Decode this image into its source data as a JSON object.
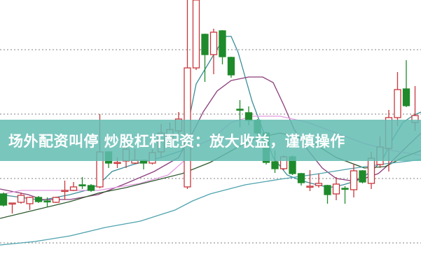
{
  "banner": {
    "title": "场外配资叫停 炒股杠杆配资：放大收益，谨慎操作"
  },
  "chart_data": {
    "type": "candlestick",
    "title": "",
    "xlabel": "",
    "ylabel": "",
    "axes_shown": false,
    "grid": "horizontal dotted",
    "gridlines": [
      329,
      237,
      145,
      53
    ],
    "ylim": [
      0,
      400
    ],
    "colors": {
      "up": "#c8373c",
      "down": "#1f8a2b",
      "grid": "#9a9a9a"
    },
    "candles": [
      [
        123,
        107,
        125,
        105
      ],
      [
        109,
        110,
        110,
        95
      ],
      [
        111,
        121,
        125,
        109
      ],
      [
        109,
        118,
        119,
        100
      ],
      [
        118,
        112,
        120,
        110
      ],
      [
        113,
        112,
        118,
        105
      ],
      [
        111,
        118,
        119,
        110
      ],
      [
        127,
        128,
        142,
        115
      ],
      [
        128,
        133,
        140,
        127
      ],
      [
        136,
        135,
        147,
        130
      ],
      [
        135,
        128,
        137,
        126
      ],
      [
        133,
        183,
        237,
        131
      ],
      [
        183,
        167,
        184,
        160
      ],
      [
        167,
        168,
        175,
        160
      ],
      [
        170,
        187,
        195,
        160
      ],
      [
        167,
        171,
        187,
        166
      ],
      [
        171,
        167,
        172,
        158
      ],
      [
        167,
        182,
        187,
        165
      ],
      [
        183,
        210,
        223,
        175
      ],
      [
        200,
        215,
        225,
        195
      ],
      [
        213,
        230,
        240,
        208
      ],
      [
        133,
        303,
        400,
        130
      ],
      [
        303,
        400,
        400,
        300
      ],
      [
        351,
        322,
        352,
        283
      ],
      [
        322,
        354,
        359,
        294
      ],
      [
        356,
        319,
        357,
        308
      ],
      [
        318,
        293,
        319,
        289
      ],
      [
        244,
        243,
        257,
        218
      ],
      [
        239,
        228,
        248,
        221
      ],
      [
        228,
        210,
        230,
        200
      ],
      [
        210,
        168,
        212,
        165
      ],
      [
        169,
        159,
        185,
        153
      ],
      [
        159,
        176,
        178,
        157
      ],
      [
        176,
        152,
        178,
        150
      ],
      [
        152,
        139,
        153,
        135
      ],
      [
        133,
        134,
        157,
        127
      ],
      [
        135,
        138,
        152,
        132
      ],
      [
        135,
        122,
        136,
        109
      ],
      [
        123,
        137,
        147,
        114
      ],
      [
        131,
        130,
        134,
        109
      ],
      [
        129,
        156,
        166,
        118
      ],
      [
        156,
        140,
        157,
        138
      ],
      [
        138,
        174,
        183,
        130
      ],
      [
        165,
        190,
        205,
        160
      ],
      [
        188,
        232,
        243,
        155
      ],
      [
        232,
        272,
        297,
        220
      ],
      [
        273,
        249,
        314,
        247
      ],
      [
        225,
        235,
        277,
        213
      ]
    ],
    "candle_fields": [
      "open",
      "close",
      "high",
      "low"
    ],
    "moving_averages": [
      {
        "color": "#3b8e98",
        "points": [
          [
            0.6,
            122
          ],
          [
            5.4,
            114
          ],
          [
            8.6,
            122
          ],
          [
            11,
            130
          ],
          [
            12,
            138
          ],
          [
            13.4,
            155
          ],
          [
            15.8,
            165
          ],
          [
            19,
            175
          ],
          [
            21.4,
            185
          ],
          [
            22.2,
            230
          ],
          [
            23,
            280
          ],
          [
            24.2,
            305
          ],
          [
            25.4,
            330
          ],
          [
            26.4,
            348
          ],
          [
            27,
            348
          ],
          [
            27.8,
            325
          ],
          [
            28.6,
            290
          ],
          [
            29.4,
            255
          ],
          [
            30.6,
            215
          ],
          [
            31.8,
            175
          ],
          [
            33.4,
            150
          ],
          [
            35,
            142
          ],
          [
            36.2,
            138
          ],
          [
            38.2,
            132
          ],
          [
            39.8,
            136
          ],
          [
            41.4,
            142
          ],
          [
            43,
            155
          ],
          [
            44.2,
            170
          ],
          [
            45.4,
            200
          ],
          [
            46.6,
            225
          ],
          [
            47.8,
            235
          ],
          [
            48.7,
            240
          ]
        ]
      },
      {
        "color": "#8b3d7c",
        "points": [
          [
            0.6,
            130
          ],
          [
            3.8,
            122
          ],
          [
            5.4,
            115
          ],
          [
            8.6,
            115
          ],
          [
            11.8,
            122
          ],
          [
            15,
            138
          ],
          [
            18.2,
            155
          ],
          [
            21,
            175
          ],
          [
            22.6,
            210
          ],
          [
            23.8,
            240
          ],
          [
            25.4,
            270
          ],
          [
            27,
            285
          ],
          [
            29,
            290
          ],
          [
            30.6,
            290
          ],
          [
            31.8,
            282
          ],
          [
            33,
            250
          ],
          [
            34.2,
            215
          ],
          [
            35.8,
            185
          ],
          [
            37.4,
            160
          ],
          [
            39,
            145
          ],
          [
            40.6,
            142
          ],
          [
            42.2,
            145
          ],
          [
            43.8,
            152
          ],
          [
            45,
            165
          ],
          [
            46.6,
            185
          ],
          [
            48.7,
            210
          ]
        ]
      },
      {
        "color": "#e29be0",
        "points": [
          [
            0.6,
            122
          ],
          [
            3,
            128
          ],
          [
            11.8,
            128
          ],
          [
            16.6,
            138
          ],
          [
            19.8,
            150
          ],
          [
            21.6,
            170
          ],
          [
            22.6,
            190
          ],
          [
            24.6,
            200
          ],
          [
            27,
            225
          ],
          [
            29.4,
            234
          ],
          [
            32.6,
            234
          ],
          [
            35.8,
            225
          ],
          [
            39,
            210
          ],
          [
            42.2,
            195
          ],
          [
            45.4,
            185
          ],
          [
            48.7,
            178
          ]
        ]
      },
      {
        "color": "#2f5a2f",
        "points": [
          [
            0.6,
            88
          ],
          [
            4.6,
            100
          ],
          [
            8.6,
            112
          ],
          [
            11.8,
            124
          ],
          [
            15,
            132
          ],
          [
            18.2,
            142
          ],
          [
            21.4,
            152
          ],
          [
            24.6,
            168
          ],
          [
            27.8,
            190
          ],
          [
            30,
            203
          ],
          [
            32.6,
            210
          ],
          [
            35.8,
            200
          ],
          [
            39,
            175
          ],
          [
            42.2,
            160
          ],
          [
            44.6,
            162
          ],
          [
            46.6,
            175
          ],
          [
            48.7,
            185
          ]
        ]
      },
      {
        "color": "#4fa3ad",
        "points": [
          [
            0.6,
            50
          ],
          [
            4.6,
            55
          ],
          [
            8.6,
            63
          ],
          [
            12.6,
            75
          ],
          [
            16.6,
            84
          ],
          [
            20.6,
            100
          ],
          [
            22.6,
            113
          ],
          [
            24.6,
            123
          ],
          [
            28.6,
            136
          ],
          [
            32.6,
            144
          ],
          [
            36.6,
            151
          ],
          [
            40.6,
            159
          ],
          [
            44.6,
            166
          ],
          [
            48.7,
            172
          ]
        ]
      }
    ]
  }
}
